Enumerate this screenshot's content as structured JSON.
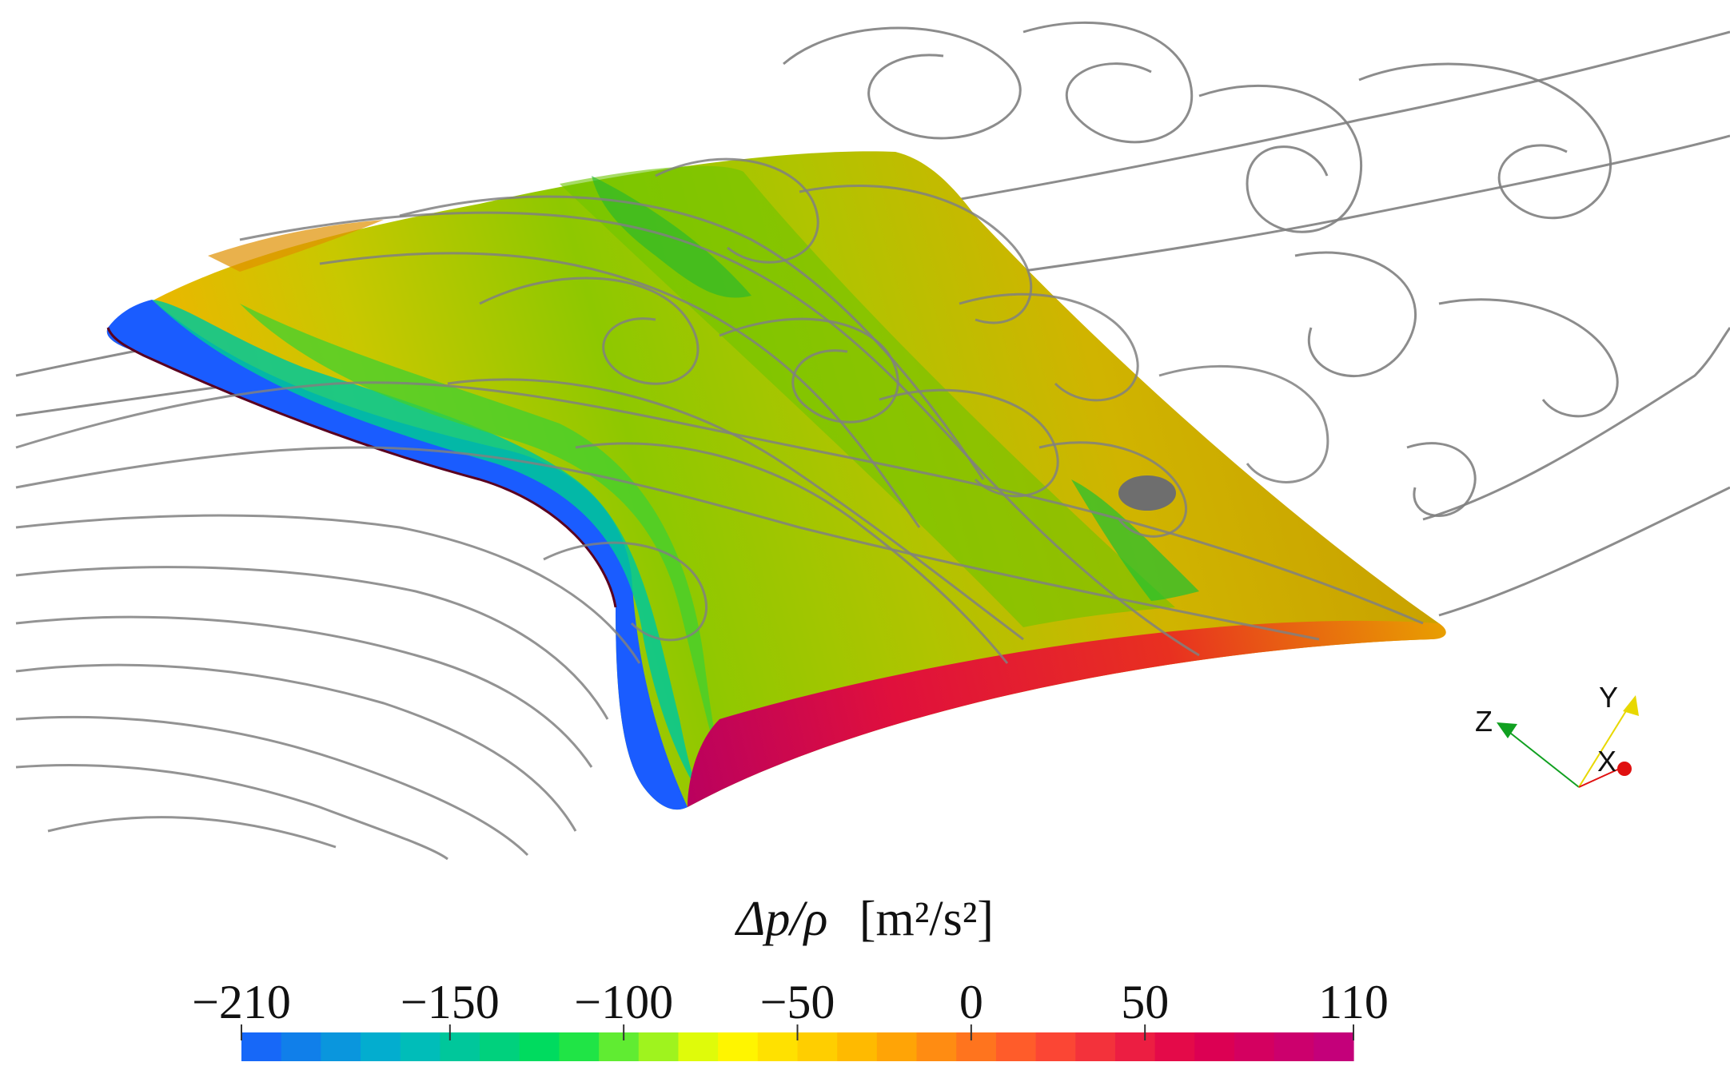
{
  "colorbar": {
    "title_var": "Δp/ρ",
    "title_unit": "[m²/s²]",
    "min": -210,
    "max": 110,
    "ticks": [
      -210,
      -150,
      -100,
      -50,
      0,
      50,
      110
    ],
    "tick_labels": [
      "−210",
      "−150",
      "−100",
      "−50",
      "0",
      "50",
      "110"
    ],
    "segments": 28,
    "color_stops": [
      "#1a5cff",
      "#00b8c8",
      "#00e050",
      "#ffff00",
      "#ffb000",
      "#ff5030",
      "#e0004c",
      "#c00080"
    ]
  },
  "axes_triad": {
    "x_label": "X",
    "y_label": "Y",
    "z_label": "Z",
    "x_color": "#e01010",
    "y_color": "#e8d800",
    "z_color": "#10a020"
  },
  "streamline_color": "#808080"
}
